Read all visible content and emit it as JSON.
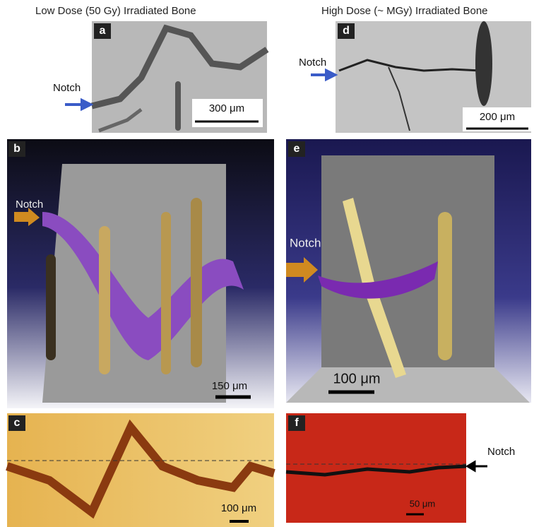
{
  "header": {
    "left": "Low Dose (50 Gy) Irradiated Bone",
    "right": "High Dose (~ MGy) Irradiated Bone"
  },
  "panels": [
    {
      "label": "a",
      "scale": "300 μm",
      "notch": "Notch"
    },
    {
      "label": "d",
      "scale": "200 μm",
      "notch": "Notch"
    },
    {
      "label": "b",
      "scale": "150 μm",
      "notch": "Notch"
    },
    {
      "label": "e",
      "scale": "100 μm",
      "notch": "Notch"
    },
    {
      "label": "c",
      "scale": "100 μm"
    },
    {
      "label": "f",
      "scale": "50 μm",
      "notch": "Notch"
    }
  ]
}
